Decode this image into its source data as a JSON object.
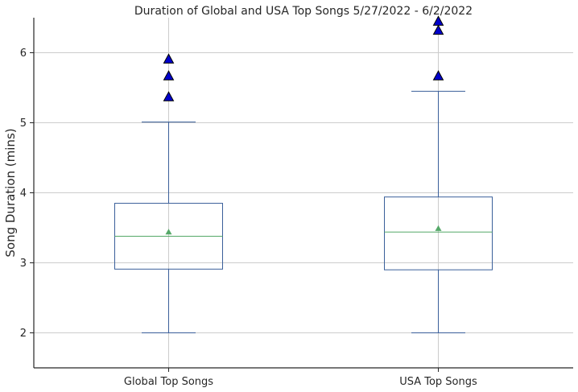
{
  "chart_data": {
    "type": "box",
    "title": "Duration of Global and USA Top Songs 5/27/2022 - 6/2/2022",
    "xlabel": "",
    "ylabel": "Song Duration (mins)",
    "ylim": [
      1.5,
      6.5
    ],
    "yticks": [
      2,
      3,
      4,
      5,
      6
    ],
    "grid": true,
    "categories": [
      "Global Top Songs",
      "USA Top Songs"
    ],
    "boxes": [
      {
        "category": "Global Top Songs",
        "whisker_low": 2.0,
        "q1": 2.91,
        "median": 3.38,
        "q3": 3.85,
        "whisker_high": 5.01,
        "mean": 3.44,
        "outliers": [
          5.37,
          5.67,
          5.91
        ]
      },
      {
        "category": "USA Top Songs",
        "whisker_low": 2.0,
        "q1": 2.9,
        "median": 3.44,
        "q3": 3.94,
        "whisker_high": 5.45,
        "mean": 3.49,
        "outliers": [
          5.67,
          6.32,
          6.45
        ]
      }
    ],
    "colors": {
      "box": "#3a5f9a",
      "median": "#55a868",
      "mean_marker": "#55a868",
      "outlier_fill": "#0000cc",
      "outlier_edge": "#000000",
      "grid": "#cccccc",
      "axis": "#262626"
    }
  }
}
